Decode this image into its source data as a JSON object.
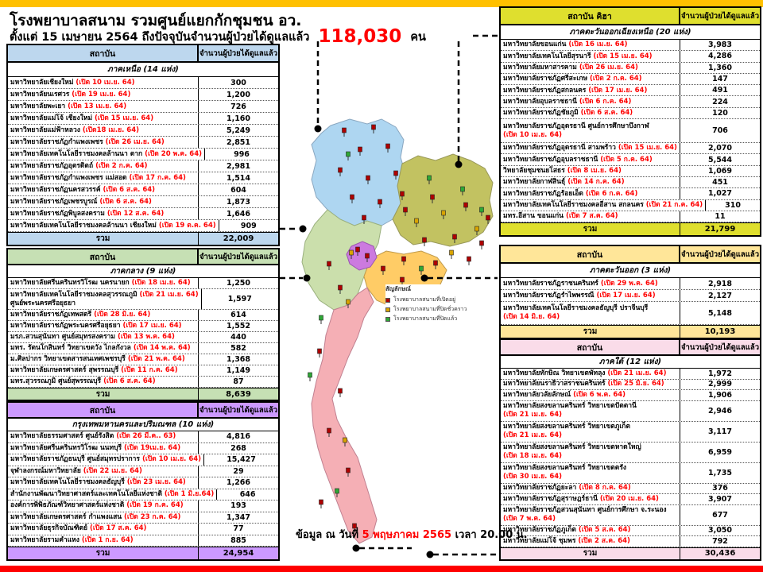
{
  "header": {
    "title": "โรงพยาบาลสนาม รวมศูนย์แยกกักชุมชน อว.",
    "subtitle_prefix": "ตั้งแต่  15 เมษายน 2564 ถึงปัจจุบันจำนวนผู้ป่วยได้ดูแลแล้ว",
    "total_count": "118,030",
    "total_unit": "คน",
    "accent_bar_color": "#FFC000",
    "bottom_bar_color": "#FF0000"
  },
  "footer": {
    "prefix": "ข้อมูล ณ วันที่",
    "date": "5 พฤษภาคม 2565",
    "suffix": "เวลา 20.00 น."
  },
  "legend": {
    "title": "สัญลักษณ์",
    "items": [
      {
        "label": "โรงพยาบาลสนามที่เปิดอยู่",
        "color": "#B00000"
      },
      {
        "label": "โรงพยาบาลสนามที่ปิดชั่วคราว",
        "color": "#D9A400"
      },
      {
        "label": "โรงพยาบาลสนามที่ปิดแล้ว",
        "color": "#2EA836"
      }
    ]
  },
  "tables": [
    {
      "id": "north",
      "col_institution": "สถาบัน",
      "col_count": "จำนวนผู้ป่วยได้ดูแลแล้ว",
      "region": "ภาคเหนือ (14 แห่ง)",
      "accent": "#BDD7EE",
      "total_label": "รวม",
      "total": "22,009",
      "rows": [
        {
          "name": "มหาวิทยาลัยเชียงใหม่",
          "open": "(เปิด 10 เม.ย. 64)",
          "value": "300"
        },
        {
          "name": "มหาวิทยาลัยนเรศวร",
          "open": "(เปิด 19 เม.ย. 64)",
          "value": "1,200"
        },
        {
          "name": "มหาวิทยาลัยพะเยา",
          "open": "(เปิด 13 เม.ย. 64)",
          "value": "726"
        },
        {
          "name": "มหาวิทยาลัยแม่โจ้ เชียงใหม่",
          "open": "(เปิด 15 เม.ย. 64)",
          "value": "1,160"
        },
        {
          "name": "มหาวิทยาลัยแม่ฟ้าหลวง",
          "open": "(เปิด18 เม.ย. 64)",
          "value": "5,249"
        },
        {
          "name": "มหาวิทยาลัยราชภัฏกำแพงเพชร",
          "open": "(เปิด 26 เม.ย. 64)",
          "value": "2,851"
        },
        {
          "name": "มหาวิทยาลัยเทคโนโลยีราชมงคลล้านนา ตาก",
          "open": "(เปิด 20 พ.ค. 64)",
          "value": "996"
        },
        {
          "name": "มหาวิทยาลัยราชภัฏอุตรดิตถ์",
          "open": "(เปิด 2 ก.ค. 64)",
          "value": "2,981"
        },
        {
          "name": "มหาวิทยาลัยราชภัฏกำแพงเพชร แม่สอด",
          "open": "(เปิด 17 ก.ค. 64)",
          "value": "1,514"
        },
        {
          "name": "มหาวิทยาลัยราชภัฏนครสวรรค์",
          "open": "(เปิด 6 ส.ค. 64)",
          "value": "604"
        },
        {
          "name": "มหาวิทยาลัยราชภัฏเพชรบูรณ์",
          "open": "(เปิด 6 ส.ค. 64)",
          "value": "1,873"
        },
        {
          "name": "มหาวิทยาลัยราชภัฏพิบูลสงคราม",
          "open": "(เปิด 12 ส.ค. 64)",
          "value": "1,646"
        },
        {
          "name": "มหาวิทยาลัยเทคโนโลยีราชมงคลล้านนา เชียงใหม่",
          "open": "(เปิด 19 ต.ค. 64)",
          "value": "909"
        }
      ]
    },
    {
      "id": "central",
      "col_institution": "สถาบัน",
      "col_count": "จำนวนผู้ป่วยได้ดูแลแล้ว",
      "region": "ภาคกลาง (9 แห่ง)",
      "accent": "#C6E0B4",
      "total_label": "รวม",
      "total": "8,639",
      "rows": [
        {
          "name": "มหาวิทยาลัยศรีนครินทรวิโรฒ นครนายก",
          "open": "(เปิด 18 เม.ย. 64)",
          "value": "1,250"
        },
        {
          "name": "มหาวิทยาลัยเทคโนโลยีราชมงคลสุวรรณภูมิ",
          "open": "(เปิด 21 เม.ย. 64)",
          "name2": "ศูนย์พระนครศรีอยุธยา",
          "value": "1,597"
        },
        {
          "name": "มหาวิทยาลัยราชภัฏเทพสตรี",
          "open": "(เปิด 28 มิ.ย. 64)",
          "value": "614"
        },
        {
          "name": "มหาวิทยาลัยราชภัฏพระนครศรีอยุธยา",
          "open": "(เปิด 17 เม.ย. 64)",
          "value": "1,552"
        },
        {
          "name": "มรภ.สวนสุนันทา ศูนย์สมุทรสงคราม",
          "open": "(เปิด 13 พ.ค. 64)",
          "value": "440"
        },
        {
          "name": "มทร. รัตนโกสินทร์  วิทยาเขตวัง ไกลกังวล",
          "open": "(เปิด 14 พ.ค. 64)",
          "value": "582"
        },
        {
          "name": "ม.ศิลปากร วิทยาเขตสารสนเทศเพชรบุรี",
          "open": "(เปิด 21 พ.ค. 64)",
          "value": "1,368"
        },
        {
          "name": "มหาวิทยาลัยเกษตรศาสตร์  สุพรรณบุรี",
          "open": "(เปิด 11 ก.ค. 64)",
          "value": "1,149"
        },
        {
          "name": "มทร.สุวรรณภูมิ ศูนย์สุพรรณบุรี",
          "open": "(เปิด 6 ส.ค. 64)",
          "value": "87"
        }
      ]
    },
    {
      "id": "bkk",
      "col_institution": "สถาบัน",
      "col_count": "จำนวนผู้ป่วยได้ดูแลแล้ว",
      "region": "กรุงเทพมหานครและปริมณฑล (10 แห่ง)",
      "accent": "#CC99FF",
      "total_label": "รวม",
      "total": "24,954",
      "rows": [
        {
          "name": "มหาวิทยาลัยธรรมศาสตร์ ศูนย์รังสิต",
          "open": "(เปิด 26 มี.ค.. 63)",
          "value": "4,816"
        },
        {
          "name": "มหาวิทยาลัยศรีนครินทรวิโรฒ นนทบุรี",
          "open": "(เปิด 19เม.ย. 64)",
          "value": "268"
        },
        {
          "name": "มหาวิทยาลัยราชภัฏธนบุรี ศูนย์สมุทรปราการ",
          "open": "(เปิด 10 เม.ย. 64)",
          "value": "15,427"
        },
        {
          "name": "จุฬาลงกรณ์มหาวิทยาลัย",
          "open": "(เปิด 22 เม.ย. 64)",
          "value": "29"
        },
        {
          "name": "มหาวิทยาลัยเทคโนโลยีราชมงคลธัญบุรี",
          "open": "(เปิด 23 เม.ย. 64)",
          "value": "1,266"
        },
        {
          "name": "สำนักงานพัฒนาวิทยาศาสตร์และเทคโนโลยีแห่งชาติ",
          "open": "(เปิด 1 มิ.ย.64)",
          "value": "646"
        },
        {
          "name": "องค์การพิพิธภัณฑ์วิทยาศาสตร์แห่งชาติ",
          "open": "(เปิด  19 ก.ค. 64)",
          "value": "193"
        },
        {
          "name": "มหาวิทยาลัยเกษตรศาสตร์  กำแพงแสน",
          "open": "(เปิด 23 ก.ค. 64)",
          "value": "1,347"
        },
        {
          "name": "มหาวิทยาลัยธุรกิจบัณฑิตย์",
          "open": "(เปิด 17 ส.ค. 64)",
          "value": "77"
        },
        {
          "name": "มหาวิทยาลัยรามคำแหง",
          "open": "(เปิด 1 ก.ย. 64)",
          "value": "885"
        }
      ]
    },
    {
      "id": "ne",
      "col_institution": "สถาบัน  คิฮา",
      "col_count": "จำนวนผู้ป่วยได้ดูแลแล้ว",
      "region": "ภาคตะวันออกเฉียงเหนือ  (20 แห่ง)",
      "accent": "#DFDF2E",
      "total_label": "รวม",
      "total": "21,799",
      "rows": [
        {
          "name": "มหาวิทยาลัยขอนแก่น",
          "open": "(เปิด 16 เม.ย. 64)",
          "value": "3,983"
        },
        {
          "name": "มหาวิทยาลัยเทคโนโลยีสุรนารี",
          "open": "(เปิด 15 เม.ย. 64)",
          "value": "4,286"
        },
        {
          "name": "มหาวิทยาลัยมหาสารคาม",
          "open": "(เปิด 26 เม.ย. 64)",
          "value": "1,360"
        },
        {
          "name": "มหาวิทยาลัยราชภัฏศรีสะเกษ",
          "open": "(เปิด 2 ก.ค. 64)",
          "value": "147"
        },
        {
          "name": "มหาวิทยาลัยราชภัฏสกลนคร",
          "open": "(เปิด 17 เม.ย. 64)",
          "value": "491"
        },
        {
          "name": "มหาวิทยาลัยอุบลราชธานี",
          "open": "(เปิด 6 ก.ค. 64)",
          "value": "224"
        },
        {
          "name": "มหาวิทยาลัยราชภัฏชัยภูมิ",
          "open": "(เปิด 6 ส.ค. 64)",
          "value": "120"
        },
        {
          "name": "มหาวิทยาลัยราชภัฏอุดรธานี ศูนย์การศึกษาบึงกาฬ",
          "open2": "(เปิด 10 เม.ย. 64)",
          "value": "706"
        },
        {
          "name": "มหาวิทยาลัยราชภัฏอุดรธานี สามพร้าว",
          "open": "(เปิด 15 เม.ย. 64)",
          "value": "2,070"
        },
        {
          "name": "มหาวิทยาลัยราชภัฏอุบลราชธานี",
          "open": "(เปิด 5 ก.ค. 64)",
          "value": "5,544"
        },
        {
          "name": "วิทยาลัยชุมชนยโสธร",
          "open": "(เปิด 8 เม.ย. 64)",
          "value": "1,069"
        },
        {
          "name": "มหาวิทยาลัยกาฬสินธุ์",
          "open": "(เปิด 14 ก.ค. 64)",
          "value": "451"
        },
        {
          "name": "มหาวิทยาลัยราชภัฏร้อยเอ็ด",
          "open": "(เปิด 6 ก.ค. 64)",
          "value": "1,027"
        },
        {
          "name": "มหาวิทยาลัยเทคโนโลยีราชมงคลอีสาน สกลนคร",
          "open": "(เปิด 21 ก.ค. 64)",
          "value": "310"
        },
        {
          "name": "มทร.อีสาน ขอนแก่น",
          "open": "(เปิด 7 ส.ค. 64)",
          "value": "11"
        }
      ]
    },
    {
      "id": "east",
      "col_institution": "สถาบัน",
      "col_count": "จำนวนผู้ป่วยได้ดูแลแล้ว",
      "region": "ภาคตะวันออก (3 แห่ง)",
      "accent": "#FFE699",
      "total_label": "รวม",
      "total": "10,193",
      "rows": [
        {
          "name": "มหาวิทยาลัยราชภัฏราชนครินทร์",
          "open": "(เปิด 29 พ.ค. 64)",
          "value": "2,918"
        },
        {
          "name": "มหาวิทยาลัยราชภัฏรำไพพรรณี",
          "open": "(เปิด 17 เม.ย. 64)",
          "value": "2,127"
        },
        {
          "name": "มหาวิทยาลัยเทคโนโลยีราชมงคลธัญบุรี ปราจีนบุรี",
          "open2": "(เปิด 14 มิ.ย. 64)",
          "value": "5,148"
        }
      ]
    },
    {
      "id": "south",
      "col_institution": "สถาบัน",
      "col_count": "จำนวนผู้ป่วยได้ดูแลแล้ว",
      "region": "ภาคใต้  (12 แห่ง)",
      "accent": "#FADCE9",
      "total_label": "รวม",
      "total": "30,436",
      "rows": [
        {
          "name": "มหาวิทยาลัยทักษิณ  วิทยาเขตพัทลุง",
          "open": "(เปิด 21 เม.ย. 64)",
          "value": "1,972"
        },
        {
          "name": "มหาวิทยาลัยนราธิวาสราชนครินทร์",
          "open": "(เปิด 25 มิ.ย. 64)",
          "value": "2,999"
        },
        {
          "name": "มหาวิทยาลัยวลัยลักษณ์",
          "open": "(เปิด 6 พ.ค. 64)",
          "value": "1,906"
        },
        {
          "name": "มหาวิทยาลัยสงขลานครินทร์  วิทยาเขตปัตตานี",
          "open2": "(เปิด 21 เม.ย. 64)",
          "value": "2,946"
        },
        {
          "name": "มหาวิทยาลัยสงขลานครินทร์  วิทยาเขตภูเก็ต",
          "open2": "(เปิด 21 เม.ย. 64)",
          "value": "3,117"
        },
        {
          "name": "มหาวิทยาลัยสงขลานครินทร์  วิทยาเขตหาดใหญ่",
          "open2": "(เปิด 18 เม.ย. 64)",
          "value": "6,959"
        },
        {
          "name": "มหาวิทยาลัยสงขลานครินทร์  วิทยาเขตตรัง",
          "open2": "(เปิด  30 เม.ย. 64)",
          "value": "1,735"
        },
        {
          "name": "มหาวิทยาลัยราชภัฏยะลา",
          "open": "(เปิด  8 ก.ค. 64)",
          "value": "376"
        },
        {
          "name": "มหาวิทยาลัยราชภัฏสุราษฎร์ธานี",
          "open": "(เปิด 20 เม.ย. 64)",
          "value": "3,907"
        },
        {
          "name": "มหาวิทยาลัยราชภัฏสวนสุนันทา  ศูนย์การศึกษา  จ.ระนอง",
          "open2": "(เปิด 7 พ.ค. 64)",
          "value": "677"
        },
        {
          "name": "มหาวิทยาลัยราชภัฏภูเก็ต",
          "open": "(เปิด 5 ส.ค. 64)",
          "value": "3,050"
        },
        {
          "name": "มหาวิทยาลัยแม่โจ้  ชุมพร",
          "open": "(เปิด 2 ส.ค. 64)",
          "value": "792"
        }
      ]
    }
  ],
  "map": {
    "region_colors": {
      "north": "#AED6F1",
      "northeast": "#C2C261",
      "central": "#CBDFAC",
      "bangkok": "#CC7ADF",
      "east": "#FFCC66",
      "south": "#F5AFB5"
    }
  }
}
